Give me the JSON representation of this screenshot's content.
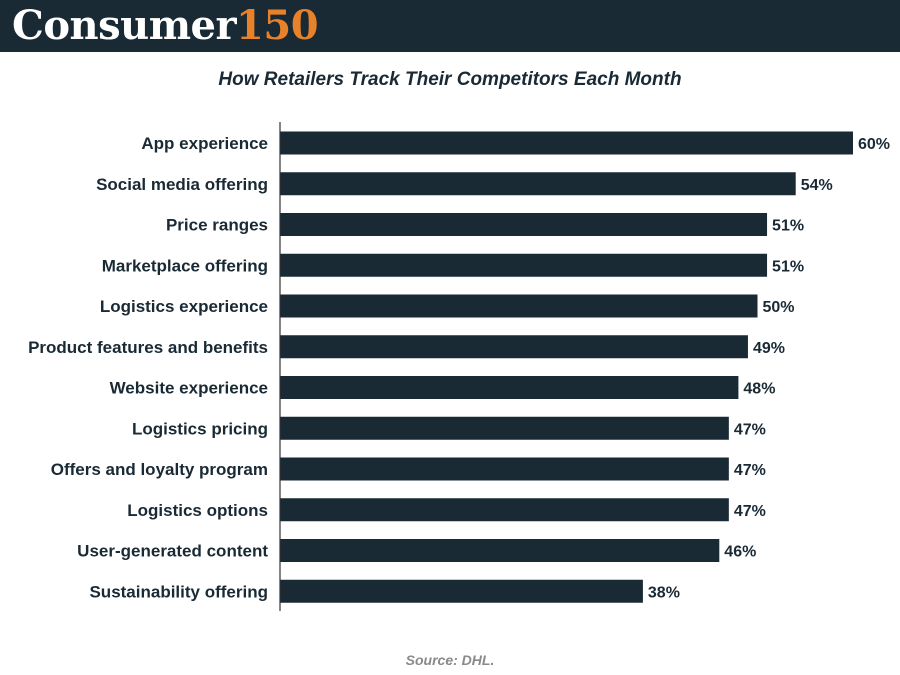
{
  "brand": {
    "word": "Consumer",
    "number": "150",
    "word_color": "#ffffff",
    "number_color": "#e8822a",
    "bar_color": "#1a2a35"
  },
  "source": "Source: DHL.",
  "chart_data": {
    "type": "bar",
    "orientation": "horizontal",
    "title": "How Retailers Track Their Competitors Each Month",
    "xlabel": "",
    "ylabel": "",
    "xlim": [
      0,
      60
    ],
    "grid": false,
    "value_suffix": "%",
    "categories": [
      "App experience",
      "Social media offering",
      "Price ranges",
      "Marketplace offering",
      "Logistics experience",
      "Product features and benefits",
      "Website experience",
      "Logistics pricing",
      "Offers and loyalty program",
      "Logistics options",
      "User-generated content",
      "Sustainability offering"
    ],
    "values": [
      60,
      54,
      51,
      51,
      50,
      49,
      48,
      47,
      47,
      47,
      46,
      38
    ],
    "data_labels": [
      "60%",
      "54%",
      "51%",
      "51%",
      "50%",
      "49%",
      "48%",
      "47%",
      "47%",
      "47%",
      "46%",
      "38%"
    ]
  }
}
